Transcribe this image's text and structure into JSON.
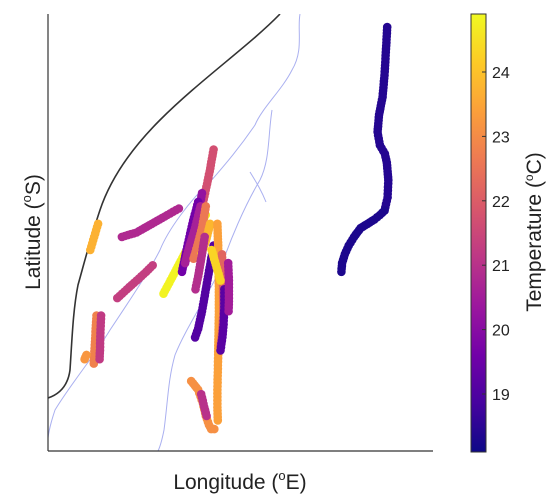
{
  "chart_data": {
    "type": "scatter",
    "title": "",
    "xlabel": {
      "text": "Longitude (",
      "sup": "o",
      "tail": "E)"
    },
    "ylabel": {
      "text": "Latitude (",
      "sup": "o",
      "tail": "S)"
    },
    "colorbar": {
      "label": {
        "text": "Temperature (",
        "sup": "o",
        "tail": "C)"
      },
      "range": [
        18.1,
        24.9
      ],
      "ticks": [
        "19",
        "20",
        "21",
        "22",
        "23",
        "24"
      ],
      "colormap": "plasma",
      "stops": [
        "#0d0887",
        "#46039f",
        "#7201a8",
        "#9c179e",
        "#bd3786",
        "#d8576b",
        "#ed7953",
        "#fb9f3a",
        "#fdca26",
        "#f0f921"
      ]
    },
    "xlim": [
      0,
      1
    ],
    "ylim": [
      0,
      1
    ],
    "grid": false,
    "series": [
      {
        "temperature": 18.4,
        "points": [
          [
            0.881,
            0.97
          ],
          [
            0.878,
            0.92
          ],
          [
            0.874,
            0.86
          ],
          [
            0.869,
            0.81
          ],
          [
            0.86,
            0.77
          ],
          [
            0.856,
            0.73
          ],
          [
            0.862,
            0.7
          ],
          [
            0.875,
            0.68
          ],
          [
            0.88,
            0.66
          ],
          [
            0.884,
            0.62
          ],
          [
            0.882,
            0.58
          ],
          [
            0.874,
            0.55
          ]
        ]
      },
      {
        "temperature": 18.3,
        "points": [
          [
            0.874,
            0.55
          ],
          [
            0.862,
            0.54
          ],
          [
            0.848,
            0.53
          ],
          [
            0.83,
            0.52
          ],
          [
            0.812,
            0.51
          ],
          [
            0.795,
            0.49
          ],
          [
            0.781,
            0.47
          ],
          [
            0.771,
            0.45
          ],
          [
            0.764,
            0.43
          ],
          [
            0.762,
            0.41
          ]
        ]
      },
      {
        "temperature": 23.7,
        "points": [
          [
            0.13,
            0.52
          ],
          [
            0.12,
            0.49
          ],
          [
            0.11,
            0.46
          ]
        ]
      },
      {
        "temperature": 22.8,
        "points": [
          [
            0.126,
            0.31
          ],
          [
            0.124,
            0.28
          ],
          [
            0.122,
            0.25
          ],
          [
            0.12,
            0.22
          ],
          [
            0.119,
            0.2
          ]
        ]
      },
      {
        "temperature": 21.2,
        "points": [
          [
            0.138,
            0.31
          ],
          [
            0.136,
            0.27
          ],
          [
            0.135,
            0.23
          ],
          [
            0.134,
            0.21
          ]
        ]
      },
      {
        "temperature": 23.2,
        "points": [
          [
            0.1,
            0.22
          ],
          [
            0.095,
            0.21
          ]
        ]
      },
      {
        "temperature": 20.8,
        "points": [
          [
            0.192,
            0.49
          ],
          [
            0.23,
            0.5
          ],
          [
            0.27,
            0.52
          ],
          [
            0.31,
            0.54
          ],
          [
            0.34,
            0.555
          ]
        ]
      },
      {
        "temperature": 21.3,
        "points": [
          [
            0.18,
            0.35
          ],
          [
            0.205,
            0.37
          ],
          [
            0.23,
            0.39
          ],
          [
            0.255,
            0.41
          ],
          [
            0.272,
            0.425
          ]
        ]
      },
      {
        "temperature": 24.8,
        "points": [
          [
            0.3,
            0.36
          ],
          [
            0.33,
            0.41
          ],
          [
            0.36,
            0.46
          ],
          [
            0.39,
            0.51
          ],
          [
            0.41,
            0.54
          ]
        ]
      },
      {
        "temperature": 21.7,
        "points": [
          [
            0.43,
            0.69
          ],
          [
            0.42,
            0.64
          ],
          [
            0.408,
            0.59
          ],
          [
            0.395,
            0.54
          ],
          [
            0.382,
            0.49
          ],
          [
            0.37,
            0.45
          ]
        ]
      },
      {
        "temperature": 20.2,
        "points": [
          [
            0.4,
            0.59
          ],
          [
            0.39,
            0.54
          ],
          [
            0.378,
            0.5
          ],
          [
            0.365,
            0.47
          ]
        ]
      },
      {
        "temperature": 19.6,
        "points": [
          [
            0.39,
            0.57
          ],
          [
            0.375,
            0.52
          ],
          [
            0.36,
            0.46
          ],
          [
            0.348,
            0.41
          ]
        ]
      },
      {
        "temperature": 20.6,
        "points": [
          [
            0.396,
            0.56
          ],
          [
            0.382,
            0.51
          ],
          [
            0.368,
            0.47
          ],
          [
            0.356,
            0.43
          ]
        ]
      },
      {
        "temperature": 22.6,
        "points": [
          [
            0.41,
            0.56
          ],
          [
            0.4,
            0.51
          ],
          [
            0.388,
            0.47
          ],
          [
            0.378,
            0.44
          ]
        ]
      },
      {
        "temperature": 23.8,
        "points": [
          [
            0.421,
            0.52
          ],
          [
            0.41,
            0.48
          ],
          [
            0.398,
            0.45
          ]
        ]
      },
      {
        "temperature": 19.1,
        "points": [
          [
            0.43,
            0.47
          ],
          [
            0.42,
            0.42
          ],
          [
            0.41,
            0.37
          ],
          [
            0.4,
            0.32
          ],
          [
            0.39,
            0.28
          ],
          [
            0.382,
            0.26
          ]
        ]
      },
      {
        "temperature": 20.9,
        "points": [
          [
            0.407,
            0.49
          ],
          [
            0.398,
            0.44
          ],
          [
            0.39,
            0.4
          ],
          [
            0.383,
            0.37
          ]
        ]
      },
      {
        "temperature": 23.4,
        "points": [
          [
            0.44,
            0.52
          ],
          [
            0.442,
            0.47
          ],
          [
            0.443,
            0.42
          ],
          [
            0.444,
            0.37
          ],
          [
            0.444,
            0.32
          ],
          [
            0.443,
            0.27
          ],
          [
            0.442,
            0.22
          ],
          [
            0.441,
            0.18
          ],
          [
            0.44,
            0.14
          ],
          [
            0.44,
            0.1
          ],
          [
            0.441,
            0.07
          ]
        ]
      },
      {
        "temperature": 22.2,
        "points": [
          [
            0.452,
            0.45
          ],
          [
            0.454,
            0.4
          ],
          [
            0.455,
            0.35
          ],
          [
            0.455,
            0.31
          ],
          [
            0.452,
            0.27
          ],
          [
            0.448,
            0.24
          ]
        ]
      },
      {
        "temperature": 19.2,
        "points": [
          [
            0.458,
            0.37
          ],
          [
            0.458,
            0.33
          ],
          [
            0.456,
            0.29
          ],
          [
            0.453,
            0.26
          ],
          [
            0.448,
            0.23
          ]
        ]
      },
      {
        "temperature": 20.5,
        "points": [
          [
            0.468,
            0.43
          ],
          [
            0.47,
            0.39
          ],
          [
            0.47,
            0.35
          ],
          [
            0.469,
            0.32
          ]
        ]
      },
      {
        "temperature": 24.3,
        "points": [
          [
            0.425,
            0.46
          ],
          [
            0.438,
            0.42
          ],
          [
            0.448,
            0.39
          ]
        ]
      },
      {
        "temperature": 23.1,
        "points": [
          [
            0.372,
            0.16
          ],
          [
            0.39,
            0.14
          ],
          [
            0.402,
            0.11
          ],
          [
            0.41,
            0.08
          ],
          [
            0.418,
            0.06
          ],
          [
            0.424,
            0.05
          ],
          [
            0.432,
            0.05
          ]
        ]
      },
      {
        "temperature": 21.0,
        "points": [
          [
            0.398,
            0.13
          ],
          [
            0.406,
            0.1
          ],
          [
            0.412,
            0.08
          ]
        ]
      }
    ]
  }
}
